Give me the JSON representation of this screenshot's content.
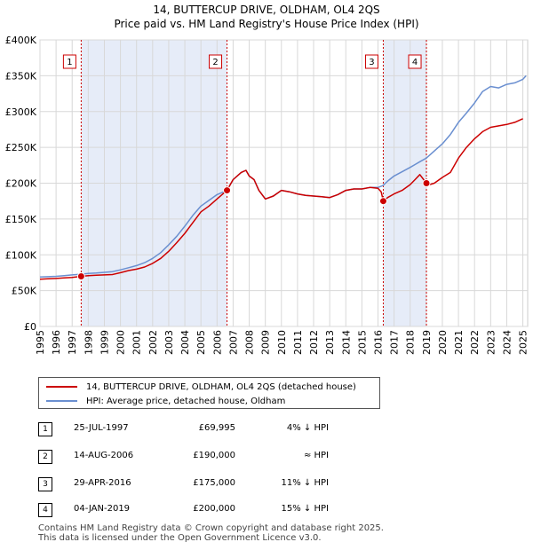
{
  "chart_data": {
    "type": "line",
    "title": "14, BUTTERCUP DRIVE, OLDHAM, OL4 2QS",
    "subtitle": "Price paid vs. HM Land Registry's House Price Index (HPI)",
    "xlabel": "",
    "ylabel": "",
    "xlim": [
      1995,
      2025.3
    ],
    "ylim": [
      0,
      400000
    ],
    "y_ticks": [
      0,
      50000,
      100000,
      150000,
      200000,
      250000,
      300000,
      350000,
      400000
    ],
    "y_tick_labels": [
      "£0",
      "£50K",
      "£100K",
      "£150K",
      "£200K",
      "£250K",
      "£300K",
      "£350K",
      "£400K"
    ],
    "x_ticks": [
      "1995",
      "1996",
      "1997",
      "1998",
      "1999",
      "2000",
      "2001",
      "2002",
      "2003",
      "2004",
      "2005",
      "2006",
      "2007",
      "2008",
      "2009",
      "2010",
      "2011",
      "2012",
      "2013",
      "2014",
      "2015",
      "2016",
      "2017",
      "2018",
      "2019",
      "2020",
      "2021",
      "2022",
      "2023",
      "2024",
      "2025"
    ],
    "grid": true,
    "series": [
      {
        "name": "14, BUTTERCUP DRIVE, OLDHAM, OL4 2QS (detached house)",
        "color": "#cc0000",
        "x": [
          1995.0,
          1995.5,
          1996.0,
          1996.5,
          1997.0,
          1997.56,
          1998.0,
          1998.5,
          1999.0,
          1999.5,
          2000.0,
          2000.5,
          2001.0,
          2001.5,
          2002.0,
          2002.5,
          2003.0,
          2003.5,
          2004.0,
          2004.5,
          2005.0,
          2005.5,
          2006.0,
          2006.62,
          2007.0,
          2007.5,
          2007.8,
          2008.0,
          2008.3,
          2008.6,
          2009.0,
          2009.5,
          2010.0,
          2010.5,
          2011.0,
          2011.5,
          2012.0,
          2012.5,
          2013.0,
          2013.5,
          2014.0,
          2014.5,
          2015.0,
          2015.5,
          2016.0,
          2016.2,
          2016.33,
          2016.6,
          2017.0,
          2017.5,
          2018.0,
          2018.3,
          2018.6,
          2019.01,
          2019.2,
          2019.5,
          2020.0,
          2020.5,
          2021.0,
          2021.5,
          2022.0,
          2022.5,
          2023.0,
          2023.5,
          2024.0,
          2024.5,
          2025.0
        ],
        "values": [
          66000,
          66500,
          67000,
          67800,
          68500,
          69995,
          71000,
          71500,
          72000,
          72500,
          75000,
          78000,
          80000,
          83000,
          88000,
          95000,
          105000,
          117000,
          130000,
          145000,
          160000,
          168000,
          178000,
          190000,
          205000,
          215000,
          218000,
          210000,
          205000,
          190000,
          178000,
          182000,
          190000,
          188000,
          185000,
          183000,
          182000,
          181000,
          180000,
          184000,
          190000,
          192000,
          192000,
          194000,
          193000,
          188000,
          175000,
          180000,
          185000,
          190000,
          198000,
          205000,
          212000,
          200000,
          198000,
          200000,
          208000,
          215000,
          235000,
          250000,
          262000,
          272000,
          278000,
          280000,
          282000,
          285000,
          290000
        ]
      },
      {
        "name": "HPI: Average price, detached house, Oldham",
        "color": "#6a8fd0",
        "x": [
          1995.0,
          1995.5,
          1996.0,
          1996.5,
          1997.0,
          1997.56,
          1998.0,
          1998.5,
          1999.0,
          1999.5,
          2000.0,
          2000.5,
          2001.0,
          2001.5,
          2002.0,
          2002.5,
          2003.0,
          2003.5,
          2004.0,
          2004.5,
          2005.0,
          2005.5,
          2006.0,
          2006.62,
          2007.0,
          2007.5,
          2007.8,
          2008.0,
          2008.3,
          2008.6,
          2009.0,
          2009.5,
          2010.0,
          2010.5,
          2011.0,
          2011.5,
          2012.0,
          2012.5,
          2013.0,
          2013.5,
          2014.0,
          2014.5,
          2015.0,
          2015.5,
          2016.0,
          2016.33,
          2016.6,
          2017.0,
          2017.5,
          2018.0,
          2018.3,
          2018.6,
          2019.01,
          2019.5,
          2020.0,
          2020.5,
          2021.0,
          2021.5,
          2022.0,
          2022.5,
          2023.0,
          2023.5,
          2024.0,
          2024.5,
          2025.0,
          2025.2
        ],
        "values": [
          69000,
          69500,
          70000,
          71000,
          72000,
          73000,
          74000,
          74500,
          75500,
          76500,
          79000,
          82000,
          85000,
          89000,
          95000,
          103000,
          114000,
          126000,
          140000,
          155000,
          168000,
          176000,
          184000,
          190000,
          205000,
          215000,
          218000,
          210000,
          205000,
          190000,
          178000,
          182000,
          190000,
          188000,
          185000,
          183000,
          182000,
          181000,
          180000,
          184000,
          190000,
          192000,
          192000,
          194000,
          194000,
          197000,
          203000,
          210000,
          216000,
          222000,
          226000,
          230000,
          235000,
          245000,
          255000,
          268000,
          285000,
          298000,
          312000,
          328000,
          335000,
          333000,
          338000,
          340000,
          345000,
          350000
        ]
      }
    ],
    "markers": [
      {
        "label": "1",
        "x": 1997.56,
        "value": 69995
      },
      {
        "label": "2",
        "x": 2006.62,
        "value": 190000
      },
      {
        "label": "3",
        "x": 2016.33,
        "value": 175000
      },
      {
        "label": "4",
        "x": 2019.01,
        "value": 200000
      }
    ],
    "shaded_ranges": [
      [
        1997.56,
        2006.62
      ],
      [
        2016.33,
        2019.01
      ]
    ]
  },
  "legend": {
    "items": [
      {
        "label": "14, BUTTERCUP DRIVE, OLDHAM, OL4 2QS (detached house)",
        "color": "#cc0000"
      },
      {
        "label": "HPI: Average price, detached house, Oldham",
        "color": "#6a8fd0"
      }
    ]
  },
  "transactions": [
    {
      "num": "1",
      "date": "25-JUL-1997",
      "price": "£69,995",
      "hpi": "4% ↓ HPI"
    },
    {
      "num": "2",
      "date": "14-AUG-2006",
      "price": "£190,000",
      "hpi": "≈ HPI"
    },
    {
      "num": "3",
      "date": "29-APR-2016",
      "price": "£175,000",
      "hpi": "11% ↓ HPI"
    },
    {
      "num": "4",
      "date": "04-JAN-2019",
      "price": "£200,000",
      "hpi": "15% ↓ HPI"
    }
  ],
  "footer": {
    "line1": "Contains HM Land Registry data © Crown copyright and database right 2025.",
    "line2": "This data is licensed under the Open Government Licence v3.0."
  }
}
